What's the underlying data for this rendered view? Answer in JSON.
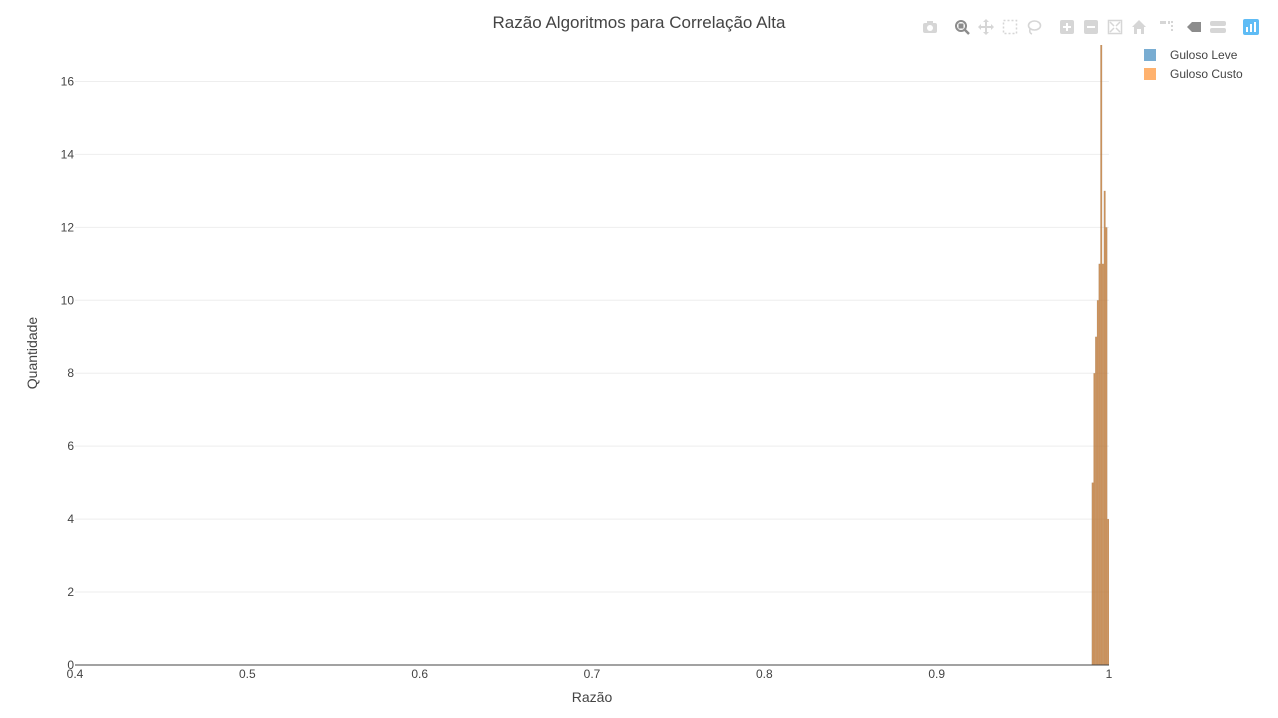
{
  "chart_data": {
    "type": "bar",
    "title": "Razão Algoritmos para Correlação Alta",
    "xlabel": "Razão",
    "ylabel": "Quantidade",
    "xlim": [
      0.4,
      1.0
    ],
    "ylim": [
      0,
      17
    ],
    "x_ticks": [
      "0.4",
      "0.5",
      "0.6",
      "0.7",
      "0.8",
      "0.9",
      "1"
    ],
    "x_tick_values": [
      0.4,
      0.5,
      0.6,
      0.7,
      0.8,
      0.9,
      1.0
    ],
    "y_ticks": [
      "0",
      "2",
      "4",
      "6",
      "8",
      "10",
      "12",
      "14",
      "16"
    ],
    "y_tick_values": [
      0,
      2,
      4,
      6,
      8,
      10,
      12,
      14,
      16
    ],
    "grid": true,
    "legend_position": "top-right",
    "bin_width": 0.001,
    "series": [
      {
        "name": "Guloso Leve",
        "color": "#1f77b4",
        "bins": [
          0.99,
          0.991,
          0.992,
          0.993,
          0.994,
          0.995,
          0.996,
          0.997,
          0.998,
          0.999
        ],
        "values": [
          5,
          8,
          9,
          10,
          11,
          17,
          11,
          13,
          12,
          4
        ]
      },
      {
        "name": "Guloso Custo",
        "color": "#ff7f0e",
        "bins": [
          0.99,
          0.991,
          0.992,
          0.993,
          0.994,
          0.995,
          0.996,
          0.997,
          0.998,
          0.999
        ],
        "values": [
          5,
          8,
          9,
          10,
          11,
          17,
          11,
          13,
          12,
          4
        ]
      }
    ]
  },
  "modebar": {
    "icons": [
      "camera-icon",
      "zoom-icon",
      "pan-icon",
      "box-select-icon",
      "lasso-icon",
      "zoom-in-icon",
      "zoom-out-icon",
      "autoscale-icon",
      "reset-axes-icon",
      "spike-lines-icon",
      "hover-closest-icon",
      "hover-compare-icon",
      "plotly-logo-icon"
    ]
  }
}
